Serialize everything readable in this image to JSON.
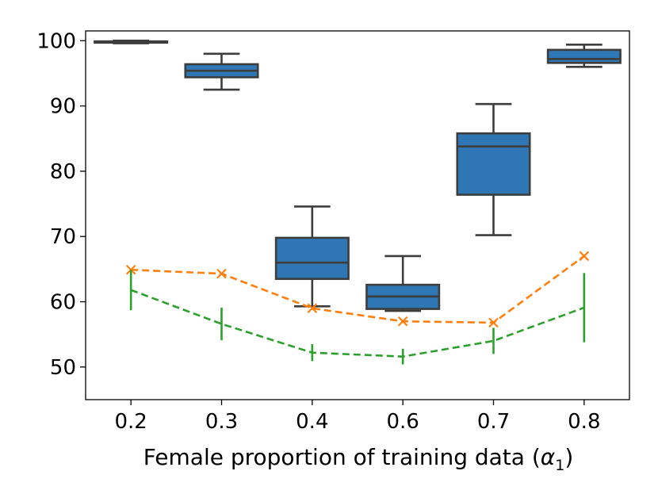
{
  "chart_data": {
    "type": "box",
    "title": "",
    "xlabel": "Female proportion of training data (α₁)",
    "xlabel_text": "Female proportion of training data (",
    "xlabel_symbol": "α",
    "xlabel_subscript": "1",
    "xlabel_close": ")",
    "ylabel": "",
    "ylim": [
      45,
      101.5
    ],
    "yticks": [
      50,
      60,
      70,
      80,
      90,
      100
    ],
    "ytick_labels": [
      "50",
      "60",
      "70",
      "80",
      "90",
      "100"
    ],
    "categories": [
      "0.2",
      "0.3",
      "0.4",
      "0.6",
      "0.7",
      "0.8"
    ],
    "boxes": [
      {
        "category": "0.2",
        "whisker_low": 99.6,
        "q1": 99.7,
        "median": 99.8,
        "q3": 99.9,
        "whisker_high": 100.0
      },
      {
        "category": "0.3",
        "whisker_low": 92.5,
        "q1": 94.4,
        "median": 95.4,
        "q3": 96.4,
        "whisker_high": 98.0
      },
      {
        "category": "0.4",
        "whisker_low": 59.3,
        "q1": 63.5,
        "median": 66.0,
        "q3": 69.8,
        "whisker_high": 74.6
      },
      {
        "category": "0.6",
        "whisker_low": 58.6,
        "q1": 58.9,
        "median": 60.8,
        "q3": 62.6,
        "whisker_high": 67.0
      },
      {
        "category": "0.7",
        "whisker_low": 70.2,
        "q1": 76.4,
        "median": 83.8,
        "q3": 85.8,
        "whisker_high": 90.3
      },
      {
        "category": "0.8",
        "whisker_low": 96.0,
        "q1": 96.6,
        "median": 97.2,
        "q3": 98.6,
        "whisker_high": 99.4
      }
    ],
    "series": [
      {
        "name": "orange-x-dashed",
        "marker": "x",
        "values": [
          64.9,
          64.3,
          59.0,
          57.0,
          56.8,
          67.0
        ]
      },
      {
        "name": "green-errorbar-dashed",
        "marker": "errorbar",
        "values": [
          61.8,
          56.6,
          52.2,
          51.6,
          54.0,
          59.1
        ],
        "err_low": [
          58.7,
          54.1,
          50.9,
          50.4,
          52.0,
          53.8
        ],
        "err_high": [
          64.9,
          59.1,
          53.5,
          52.8,
          56.0,
          64.4
        ]
      }
    ],
    "colors": {
      "box_fill": "#2f77b4",
      "box_edge": "#3d3d3d",
      "orange": "#ff7f0e",
      "green": "#2ca02c",
      "axis": "#000000"
    },
    "grid": false
  }
}
